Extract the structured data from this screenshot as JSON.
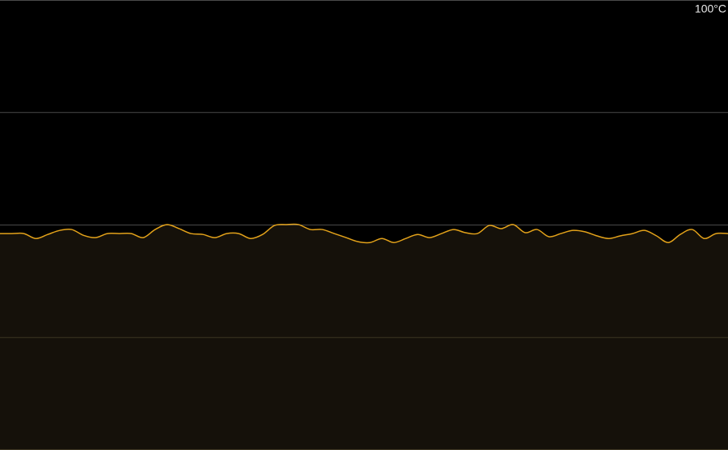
{
  "chart_data": {
    "type": "line",
    "ylim": [
      0,
      100
    ],
    "yticks": [
      {
        "value": 100,
        "label": "100°C"
      }
    ],
    "gridlines": [
      0,
      25,
      50,
      75,
      100
    ],
    "grid": true,
    "series": [
      {
        "color": "#e3a21a",
        "fill": "#15110a",
        "values": [
          48.1,
          48.1,
          48.1,
          47.0,
          47.9,
          48.8,
          49.0,
          47.7,
          47.2,
          48.1,
          48.1,
          48.1,
          47.2,
          49.0,
          50.1,
          49.2,
          48.1,
          47.9,
          47.2,
          48.1,
          48.1,
          47.0,
          47.9,
          49.9,
          50.1,
          50.1,
          49.0,
          49.0,
          48.1,
          47.2,
          46.3,
          46.1,
          47.0,
          46.1,
          47.0,
          47.9,
          47.2,
          48.1,
          49.0,
          48.3,
          48.1,
          49.9,
          49.2,
          50.1,
          48.3,
          49.0,
          47.4,
          48.1,
          48.8,
          48.5,
          47.6,
          47.0,
          47.6,
          48.1,
          48.8,
          47.6,
          46.1,
          47.9,
          49.0,
          47.0,
          48.1,
          48.1
        ]
      }
    ]
  }
}
